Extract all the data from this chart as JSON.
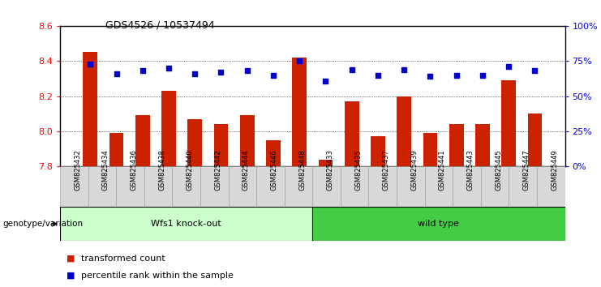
{
  "title": "GDS4526 / 10537494",
  "samples": [
    "GSM825432",
    "GSM825434",
    "GSM825436",
    "GSM825438",
    "GSM825440",
    "GSM825442",
    "GSM825444",
    "GSM825446",
    "GSM825448",
    "GSM825433",
    "GSM825435",
    "GSM825437",
    "GSM825439",
    "GSM825441",
    "GSM825443",
    "GSM825445",
    "GSM825447",
    "GSM825449"
  ],
  "transformed_count": [
    8.45,
    7.99,
    8.09,
    8.23,
    8.07,
    8.04,
    8.09,
    7.95,
    8.42,
    7.84,
    8.17,
    7.97,
    8.2,
    7.99,
    8.04,
    8.04,
    8.29,
    8.1
  ],
  "percentile_rank": [
    73,
    66,
    68,
    70,
    66,
    67,
    68,
    65,
    75,
    61,
    69,
    65,
    69,
    64,
    65,
    65,
    71,
    68
  ],
  "group_labels": [
    "Wfs1 knock-out",
    "wild type"
  ],
  "group_sizes": [
    9,
    9
  ],
  "group_color_1": "#ccffcc",
  "group_color_2": "#44cc44",
  "ylim_left": [
    7.8,
    8.6
  ],
  "ylim_right": [
    0,
    100
  ],
  "yticks_left": [
    7.8,
    8.0,
    8.2,
    8.4,
    8.6
  ],
  "yticks_right": [
    0,
    25,
    50,
    75,
    100
  ],
  "ytick_labels_right": [
    "0%",
    "25%",
    "50%",
    "75%",
    "100%"
  ],
  "bar_color": "#cc2200",
  "dot_color": "#0000cc",
  "bar_width": 0.55,
  "background_color": "#ffffff",
  "xlabel_annotation": "genotype/variation",
  "legend_transformed": "transformed count",
  "legend_percentile": "percentile rank within the sample"
}
